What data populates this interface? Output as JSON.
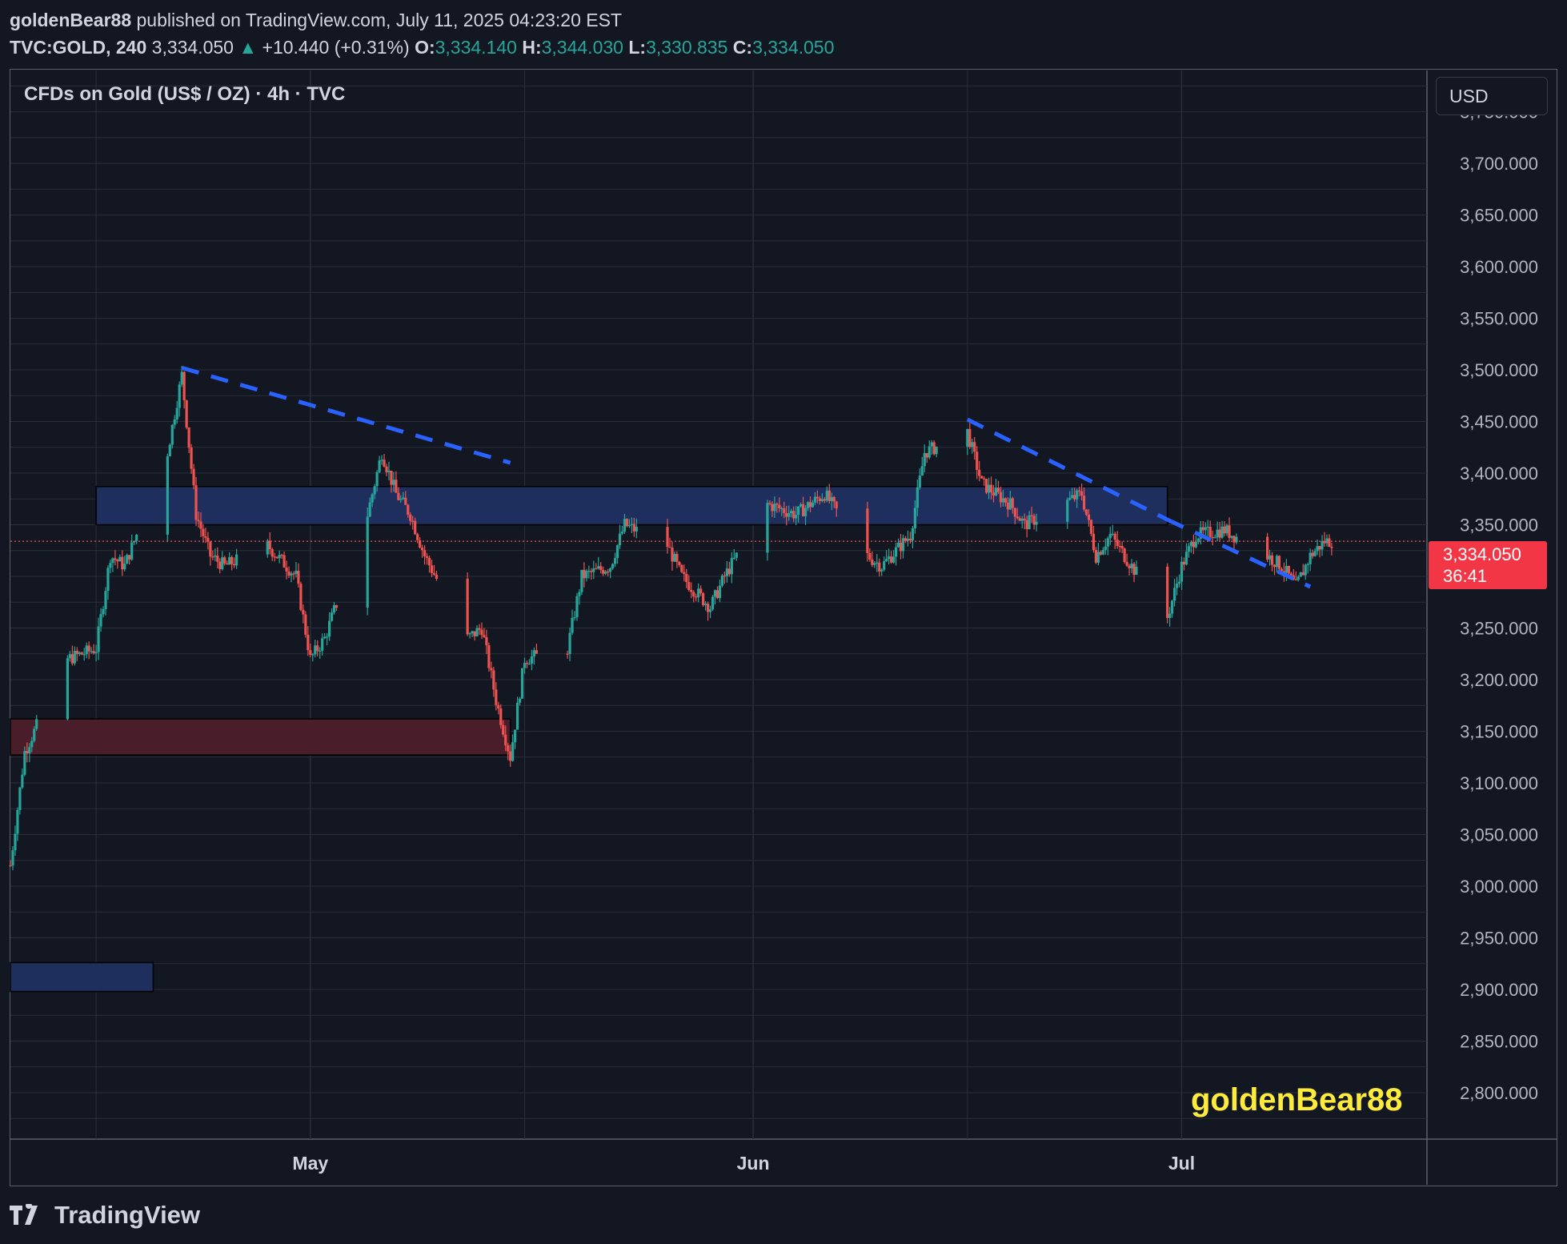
{
  "header": {
    "author": "goldenBear88",
    "published_text": "published on TradingView.com, July 11, 2025 04:23:20 EST",
    "symbol": "TVC:GOLD, 240",
    "last": "3,334.050",
    "change": "+10.440 (+0.31%)",
    "open_label": "O:",
    "open": "3,334.140",
    "high_label": "H:",
    "high": "3,344.030",
    "low_label": "L:",
    "low": "3,330.835",
    "close_label": "C:",
    "close": "3,334.050"
  },
  "colors": {
    "background": "#131722",
    "grid": "#2a2e39",
    "candle_up": "#26a69a",
    "candle_down": "#ef5350",
    "trendline": "#2962ff",
    "zone_blue": "#1e2f5e",
    "zone_red": "#4a1d2a",
    "price_tag": "#f23645",
    "watermark": "#ffeb3b"
  },
  "chart_data": {
    "type": "candlestick",
    "title": "CFDs on Gold (US$ / OZ) · 4h · TVC",
    "currency": "USD",
    "interval": "4h",
    "x_labels": [
      "May",
      "Jun",
      "Jul"
    ],
    "y_ticks": [
      "3,750.000",
      "3,700.000",
      "3,650.000",
      "3,600.000",
      "3,550.000",
      "3,500.000",
      "3,450.000",
      "3,400.000",
      "3,350.000",
      "3,300.000",
      "3,250.000",
      "3,200.000",
      "3,150.000",
      "3,100.000",
      "3,050.000",
      "3,000.000",
      "2,950.000",
      "2,900.000",
      "2,850.000",
      "2,800.000"
    ],
    "ylim": [
      2755,
      3790
    ],
    "date_range": [
      "2025-04-10",
      "2025-07-11"
    ],
    "price_path": [
      [
        "2025-04-10",
        3020
      ],
      [
        "2025-04-11",
        3130
      ],
      [
        "2025-04-14",
        3220
      ],
      [
        "2025-04-16",
        3230
      ],
      [
        "2025-04-17",
        3320
      ],
      [
        "2025-04-18",
        3310
      ],
      [
        "2025-04-21",
        3420
      ],
      [
        "2025-04-22",
        3495
      ],
      [
        "2025-04-23",
        3360
      ],
      [
        "2025-04-24",
        3320
      ],
      [
        "2025-04-25",
        3310
      ],
      [
        "2025-04-28",
        3330
      ],
      [
        "2025-04-30",
        3300
      ],
      [
        "2025-05-01",
        3220
      ],
      [
        "2025-05-02",
        3240
      ],
      [
        "2025-05-05",
        3360
      ],
      [
        "2025-05-06",
        3420
      ],
      [
        "2025-05-07",
        3380
      ],
      [
        "2025-05-08",
        3360
      ],
      [
        "2025-05-09",
        3320
      ],
      [
        "2025-05-12",
        3240
      ],
      [
        "2025-05-13",
        3250
      ],
      [
        "2025-05-14",
        3180
      ],
      [
        "2025-05-15",
        3125
      ],
      [
        "2025-05-16",
        3220
      ],
      [
        "2025-05-19",
        3230
      ],
      [
        "2025-05-20",
        3300
      ],
      [
        "2025-05-22",
        3310
      ],
      [
        "2025-05-23",
        3350
      ],
      [
        "2025-05-26",
        3330
      ],
      [
        "2025-05-27",
        3300
      ],
      [
        "2025-05-29",
        3270
      ],
      [
        "2025-05-30",
        3300
      ],
      [
        "2025-06-02",
        3370
      ],
      [
        "2025-06-04",
        3360
      ],
      [
        "2025-06-06",
        3380
      ],
      [
        "2025-06-09",
        3320
      ],
      [
        "2025-06-10",
        3310
      ],
      [
        "2025-06-12",
        3340
      ],
      [
        "2025-06-13",
        3420
      ],
      [
        "2025-06-16",
        3440
      ],
      [
        "2025-06-17",
        3390
      ],
      [
        "2025-06-19",
        3370
      ],
      [
        "2025-06-20",
        3350
      ],
      [
        "2025-06-24",
        3380
      ],
      [
        "2025-06-25",
        3320
      ],
      [
        "2025-06-26",
        3340
      ],
      [
        "2025-06-27",
        3320
      ],
      [
        "2025-06-30",
        3260
      ],
      [
        "2025-07-01",
        3310
      ],
      [
        "2025-07-02",
        3340
      ],
      [
        "2025-07-04",
        3345
      ],
      [
        "2025-07-07",
        3320
      ],
      [
        "2025-07-08",
        3310
      ],
      [
        "2025-07-09",
        3290
      ],
      [
        "2025-07-10",
        3320
      ],
      [
        "2025-07-11",
        3334.05
      ]
    ],
    "last_price": "3,334.050",
    "countdown": "36:41",
    "zones": [
      {
        "from": "2025-04-16",
        "to": "2025-06-30",
        "low": 3350,
        "high": 3387,
        "color": "blue"
      },
      {
        "from": "2025-04-10",
        "to": "2025-05-15",
        "low": 3127,
        "high": 3162,
        "color": "red"
      },
      {
        "from": "2025-04-10",
        "to": "2025-04-20",
        "low": 2898,
        "high": 2926,
        "color": "blue"
      }
    ],
    "trendlines": [
      {
        "from": [
          "2025-04-22",
          3502
        ],
        "to": [
          "2025-05-15",
          3410
        ],
        "style": "dashed"
      },
      {
        "from": [
          "2025-06-16",
          3452
        ],
        "to": [
          "2025-06-30",
          3355
        ],
        "style": "dashed"
      },
      {
        "from": [
          "2025-06-30",
          3355
        ],
        "to": [
          "2025-07-10",
          3290
        ],
        "style": "dashed"
      }
    ]
  },
  "watermark": "goldenBear88",
  "footer": {
    "brand": "TradingView"
  }
}
